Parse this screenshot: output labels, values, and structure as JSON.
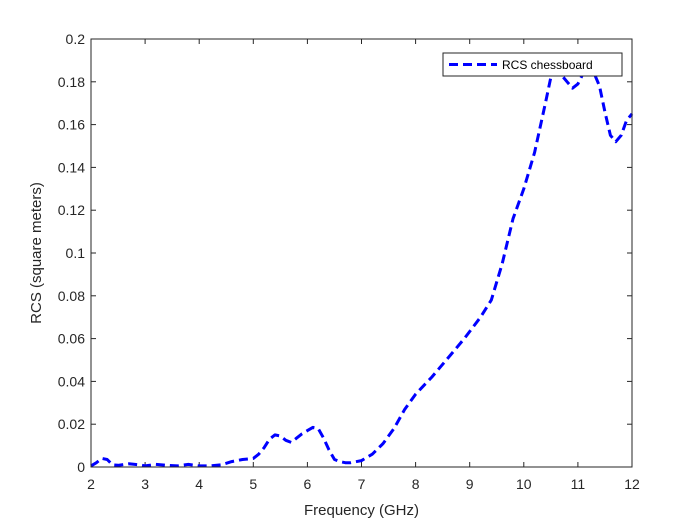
{
  "chart_data": {
    "type": "line",
    "title": "",
    "xlabel": "Frequency (GHz)",
    "ylabel": "RCS (square meters)",
    "xlim": [
      2,
      12
    ],
    "ylim": [
      0,
      0.2
    ],
    "x_ticks": [
      "2",
      "3",
      "4",
      "5",
      "6",
      "7",
      "8",
      "9",
      "10",
      "11",
      "12"
    ],
    "y_ticks": [
      "0",
      "0.02",
      "0.04",
      "0.06",
      "0.08",
      "0.1",
      "0.12",
      "0.14",
      "0.16",
      "0.18",
      "0.2"
    ],
    "grid": false,
    "legend": {
      "position": "top-right",
      "entries": [
        "RCS chessboard"
      ]
    },
    "series": [
      {
        "name": "RCS chessboard",
        "color": "#0000ff",
        "line_style": "dashed",
        "x": [
          2.0,
          2.1,
          2.2,
          2.3,
          2.4,
          2.5,
          2.7,
          2.9,
          3.0,
          3.2,
          3.4,
          3.6,
          3.8,
          4.0,
          4.2,
          4.4,
          4.6,
          4.8,
          5.0,
          5.1,
          5.2,
          5.3,
          5.4,
          5.5,
          5.6,
          5.7,
          5.8,
          5.9,
          6.0,
          6.1,
          6.2,
          6.3,
          6.4,
          6.5,
          6.6,
          6.7,
          6.8,
          7.0,
          7.2,
          7.4,
          7.6,
          7.8,
          8.0,
          8.3,
          8.6,
          8.9,
          9.2,
          9.4,
          9.6,
          9.8,
          10.0,
          10.2,
          10.4,
          10.5,
          10.6,
          10.7,
          10.8,
          10.9,
          11.0,
          11.1,
          11.2,
          11.3,
          11.4,
          11.5,
          11.6,
          11.7,
          11.8,
          11.9,
          12.0
        ],
        "y": [
          0.0005,
          0.002,
          0.004,
          0.0035,
          0.001,
          0.0008,
          0.0015,
          0.001,
          0.0005,
          0.0012,
          0.0008,
          0.0005,
          0.0012,
          0.0005,
          0.0005,
          0.001,
          0.0025,
          0.0035,
          0.004,
          0.006,
          0.009,
          0.013,
          0.015,
          0.0145,
          0.0125,
          0.0115,
          0.0135,
          0.0155,
          0.017,
          0.0185,
          0.018,
          0.0135,
          0.008,
          0.0035,
          0.0025,
          0.002,
          0.002,
          0.003,
          0.006,
          0.011,
          0.018,
          0.027,
          0.034,
          0.042,
          0.051,
          0.06,
          0.07,
          0.078,
          0.095,
          0.116,
          0.13,
          0.147,
          0.17,
          0.182,
          0.185,
          0.183,
          0.18,
          0.177,
          0.179,
          0.184,
          0.188,
          0.184,
          0.178,
          0.166,
          0.155,
          0.152,
          0.155,
          0.162,
          0.165
        ]
      }
    ]
  }
}
